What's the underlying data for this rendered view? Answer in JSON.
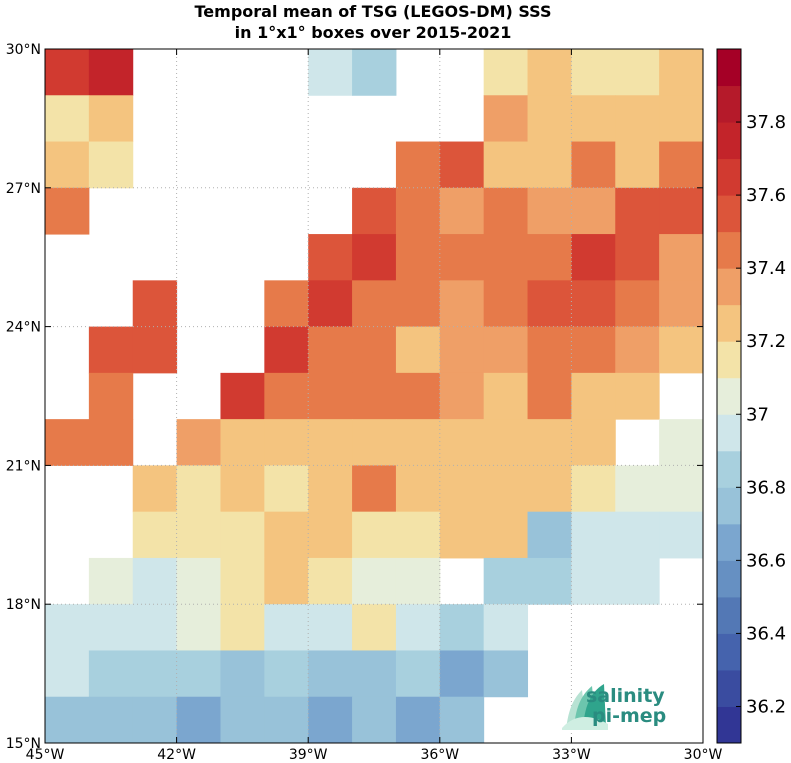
{
  "chart_data": {
    "type": "heatmap",
    "title_lines": [
      "Temporal mean of TSG (LEGOS-DM) SSS",
      "in 1°x1° boxes over 2015-2021"
    ],
    "x_ticks": [
      -45,
      -42,
      -39,
      -36,
      -33,
      -30
    ],
    "x_tick_labels": [
      "45°W",
      "42°W",
      "39°W",
      "36°W",
      "33°W",
      "30°W"
    ],
    "y_ticks": [
      15,
      18,
      21,
      24,
      27,
      30
    ],
    "y_tick_labels": [
      "15°N",
      "18°N",
      "21°N",
      "24°N",
      "27°N",
      "30°N"
    ],
    "xlim": [
      -45,
      -30
    ],
    "ylim": [
      15,
      30
    ],
    "grid": true,
    "cell_size_deg": 1,
    "row_order": "north_to_south",
    "rows_lat_top": [
      30,
      29,
      28,
      27,
      26,
      25,
      24,
      23,
      22,
      21,
      20,
      19,
      18,
      17,
      16
    ],
    "cols_lon_left": [
      -45,
      -44,
      -43,
      -42,
      -41,
      -40,
      -39,
      -38,
      -37,
      -36,
      -35,
      -34,
      -33,
      -32,
      -31
    ],
    "values": [
      [
        37.62,
        37.7,
        null,
        null,
        null,
        null,
        36.92,
        36.86,
        null,
        null,
        37.12,
        37.24,
        37.12,
        37.12,
        37.24
      ],
      [
        37.19,
        37.3,
        null,
        null,
        null,
        null,
        null,
        null,
        null,
        null,
        37.38,
        37.2,
        37.2,
        37.3,
        37.2
      ],
      [
        37.3,
        37.19,
        null,
        null,
        null,
        null,
        null,
        null,
        37.48,
        37.52,
        37.3,
        37.2,
        37.42,
        37.3,
        37.48
      ],
      [
        37.42,
        null,
        null,
        null,
        null,
        null,
        null,
        37.57,
        37.48,
        37.38,
        37.48,
        37.38,
        37.38,
        37.57,
        37.57
      ],
      [
        null,
        null,
        null,
        null,
        null,
        null,
        37.57,
        37.64,
        37.48,
        37.48,
        37.48,
        37.48,
        37.64,
        37.57,
        37.38
      ],
      [
        null,
        null,
        37.57,
        null,
        null,
        37.48,
        37.64,
        37.48,
        37.48,
        37.38,
        37.48,
        37.57,
        37.57,
        37.48,
        37.38
      ],
      [
        null,
        37.57,
        37.57,
        null,
        null,
        37.64,
        37.48,
        37.48,
        37.3,
        37.38,
        37.38,
        37.48,
        37.48,
        37.38,
        37.3
      ],
      [
        null,
        37.48,
        null,
        null,
        37.64,
        37.42,
        37.42,
        37.42,
        37.42,
        37.38,
        37.3,
        37.48,
        37.3,
        37.3,
        null
      ],
      [
        37.48,
        37.48,
        null,
        37.38,
        37.2,
        37.3,
        37.2,
        37.3,
        37.24,
        37.24,
        37.24,
        37.24,
        37.24,
        null,
        37.02
      ],
      [
        null,
        null,
        37.3,
        37.12,
        37.2,
        37.12,
        37.3,
        37.42,
        37.2,
        37.2,
        37.2,
        37.2,
        37.12,
        37.02,
        37.02
      ],
      [
        null,
        null,
        37.12,
        37.12,
        37.12,
        37.2,
        37.3,
        37.12,
        37.12,
        37.2,
        37.2,
        36.8,
        36.92,
        36.92,
        36.92
      ],
      [
        null,
        37.02,
        36.92,
        37.02,
        37.12,
        37.2,
        37.12,
        37.02,
        37.02,
        null,
        36.86,
        36.86,
        36.92,
        36.92,
        null
      ],
      [
        36.92,
        36.92,
        36.92,
        37.02,
        37.12,
        36.92,
        36.92,
        37.12,
        36.92,
        36.86,
        36.92,
        null,
        null,
        null,
        null
      ],
      [
        36.92,
        36.86,
        36.86,
        36.86,
        36.8,
        36.86,
        36.8,
        36.8,
        36.86,
        36.62,
        36.7,
        null,
        null,
        null,
        null
      ],
      [
        36.7,
        36.8,
        36.7,
        36.62,
        36.7,
        36.7,
        36.62,
        36.7,
        36.62,
        36.8,
        null,
        null,
        null,
        null,
        null
      ]
    ],
    "colorbar": {
      "range": [
        36.1,
        38.0
      ],
      "ticks": [
        36.2,
        36.4,
        36.6,
        36.8,
        37.0,
        37.2,
        37.4,
        37.6,
        37.8
      ],
      "tick_labels": [
        "36.2",
        "36.4",
        "36.6",
        "36.8",
        "37",
        "37.2",
        "37.4",
        "37.6",
        "37.8"
      ],
      "colors_low_to_high": [
        "#313695",
        "#3a4ca0",
        "#4563ad",
        "#5378b5",
        "#6690c2",
        "#7ba6cf",
        "#98c2d9",
        "#a8d0de",
        "#cfe6ea",
        "#e6eedb",
        "#f3e3a8",
        "#f4c47f",
        "#ef9f67",
        "#e67a4a",
        "#dc553a",
        "#d13a30",
        "#c3242a",
        "#b51a2a",
        "#a50026"
      ]
    }
  },
  "logo": {
    "line1": "salinity",
    "line2": "pi-mep"
  }
}
